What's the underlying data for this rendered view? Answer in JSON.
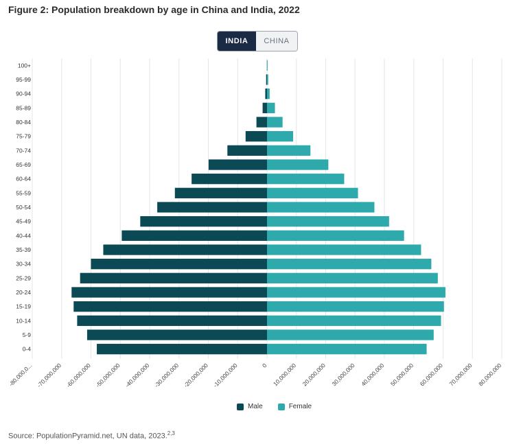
{
  "figure": {
    "title": "Figure 2: Population breakdown by age in China and India, 2022",
    "source_text": "Source: PopulationPyramid.net, UN data, 2023.",
    "source_superscript": "2,3"
  },
  "toggle": {
    "options": [
      "INDIA",
      "CHINA"
    ],
    "selected": "INDIA"
  },
  "colors": {
    "male": "#0b4a55",
    "female": "#2eaaad",
    "grid": "#e6e6e6",
    "toggle_active": "#1b2a45"
  },
  "chart_data": {
    "type": "bar",
    "orientation": "horizontal-pyramid",
    "categories": [
      "100+",
      "95-99",
      "90-94",
      "85-89",
      "80-84",
      "75-79",
      "70-74",
      "65-69",
      "60-64",
      "55-59",
      "50-54",
      "45-49",
      "40-44",
      "35-39",
      "30-34",
      "25-29",
      "20-24",
      "15-19",
      "10-14",
      "5-9",
      "0-4"
    ],
    "series": [
      {
        "name": "Male",
        "values": [
          -50000,
          -300000,
          -600000,
          -1500000,
          -3600000,
          -7300000,
          -13500000,
          -19900000,
          -25700000,
          -31400000,
          -37400000,
          -43200000,
          -49500000,
          -55800000,
          -60000000,
          -63700000,
          -66600000,
          -65900000,
          -64700000,
          -61300000,
          -58000000
        ]
      },
      {
        "name": "Female",
        "values": [
          80000,
          400000,
          900000,
          2700000,
          5300000,
          8900000,
          14800000,
          20900000,
          26300000,
          31000000,
          36600000,
          41600000,
          46700000,
          52500000,
          56000000,
          58200000,
          60800000,
          60300000,
          59300000,
          56800000,
          54400000
        ]
      }
    ],
    "x_tick_labels": [
      "-80,000,0...",
      "-70,000,000",
      "-60,000,000",
      "-50,000,000",
      "-40,000,000",
      "-30,000,000",
      "-20,000,000",
      "-10,000,000",
      "0",
      "10,000,000",
      "20,000,000",
      "30,000,000",
      "40,000,000",
      "50,000,000",
      "60,000,000",
      "70,000,000",
      "80,000,000"
    ],
    "xlim": [
      -80000000,
      80000000
    ],
    "grid": true,
    "legend_position": "bottom-center"
  }
}
